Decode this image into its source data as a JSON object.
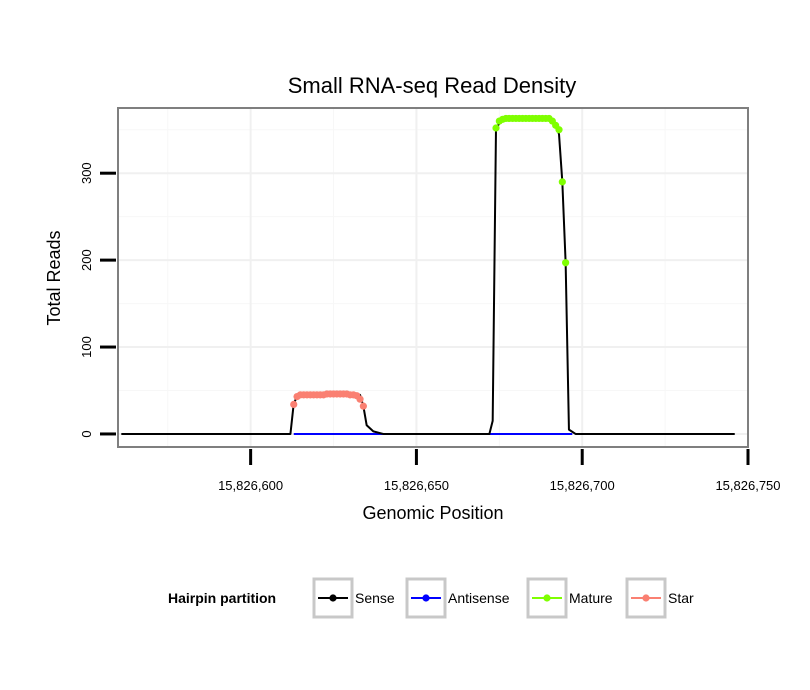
{
  "chart_data": {
    "type": "line",
    "title": "Small RNA-seq Read Density",
    "xlabel": "Genomic Position",
    "ylabel": "Total Reads",
    "xlim": [
      15826560,
      15826750
    ],
    "ylim": [
      -15,
      375
    ],
    "xticks": [
      15826600,
      15826650,
      15826700,
      15826750
    ],
    "xtick_labels": [
      "15,826,600",
      "15,826,650",
      "15,826,700",
      "15,826,750"
    ],
    "yticks": [
      0,
      100,
      200,
      300
    ],
    "ytick_labels": [
      "0",
      "100",
      "200",
      "300"
    ],
    "grid": true,
    "legend": {
      "title": "Hairpin partition",
      "position": "bottom",
      "entries": [
        {
          "name": "Sense",
          "color": "#000000"
        },
        {
          "name": "Antisense",
          "color": "#0000ff"
        },
        {
          "name": "Mature",
          "color": "#7fff00"
        },
        {
          "name": "Star",
          "color": "#fa8072"
        }
      ]
    },
    "series": [
      {
        "name": "Sense",
        "color": "#000000",
        "points": [
          [
            15826561,
            0
          ],
          [
            15826612,
            0
          ],
          [
            15826613,
            35
          ],
          [
            15826614,
            43
          ],
          [
            15826615,
            45
          ],
          [
            15826633,
            45
          ],
          [
            15826634,
            32
          ],
          [
            15826635,
            10
          ],
          [
            15826637,
            3
          ],
          [
            15826640,
            0
          ],
          [
            15826672,
            0
          ],
          [
            15826673,
            15
          ],
          [
            15826674,
            352
          ],
          [
            15826676,
            362
          ],
          [
            15826691,
            362
          ],
          [
            15826692,
            355
          ],
          [
            15826693,
            345
          ],
          [
            15826694,
            290
          ],
          [
            15826695,
            197
          ],
          [
            15826696,
            5
          ],
          [
            15826698,
            0
          ],
          [
            15826746,
            0
          ]
        ]
      },
      {
        "name": "Antisense",
        "color": "#0000ff",
        "points": [
          [
            15826613,
            0
          ],
          [
            15826697,
            0
          ]
        ]
      },
      {
        "name": "Mature",
        "color": "#7fff00",
        "points": [
          [
            15826674,
            352
          ],
          [
            15826675,
            360
          ],
          [
            15826676,
            362
          ],
          [
            15826677,
            363
          ],
          [
            15826678,
            363
          ],
          [
            15826679,
            363
          ],
          [
            15826680,
            363
          ],
          [
            15826681,
            363
          ],
          [
            15826682,
            363
          ],
          [
            15826683,
            363
          ],
          [
            15826684,
            363
          ],
          [
            15826685,
            363
          ],
          [
            15826686,
            363
          ],
          [
            15826687,
            363
          ],
          [
            15826688,
            363
          ],
          [
            15826689,
            363
          ],
          [
            15826690,
            363
          ],
          [
            15826691,
            360
          ],
          [
            15826692,
            355
          ],
          [
            15826693,
            350
          ],
          [
            15826694,
            290
          ],
          [
            15826695,
            197
          ]
        ]
      },
      {
        "name": "Star",
        "color": "#fa8072",
        "points": [
          [
            15826613,
            34
          ],
          [
            15826614,
            43
          ],
          [
            15826615,
            45
          ],
          [
            15826616,
            45
          ],
          [
            15826617,
            45
          ],
          [
            15826618,
            45
          ],
          [
            15826619,
            45
          ],
          [
            15826620,
            45
          ],
          [
            15826621,
            45
          ],
          [
            15826622,
            45
          ],
          [
            15826623,
            46
          ],
          [
            15826624,
            46
          ],
          [
            15826625,
            46
          ],
          [
            15826626,
            46
          ],
          [
            15826627,
            46
          ],
          [
            15826628,
            46
          ],
          [
            15826629,
            46
          ],
          [
            15826630,
            45
          ],
          [
            15826631,
            45
          ],
          [
            15826632,
            44
          ],
          [
            15826633,
            40
          ],
          [
            15826634,
            32
          ]
        ]
      }
    ]
  }
}
